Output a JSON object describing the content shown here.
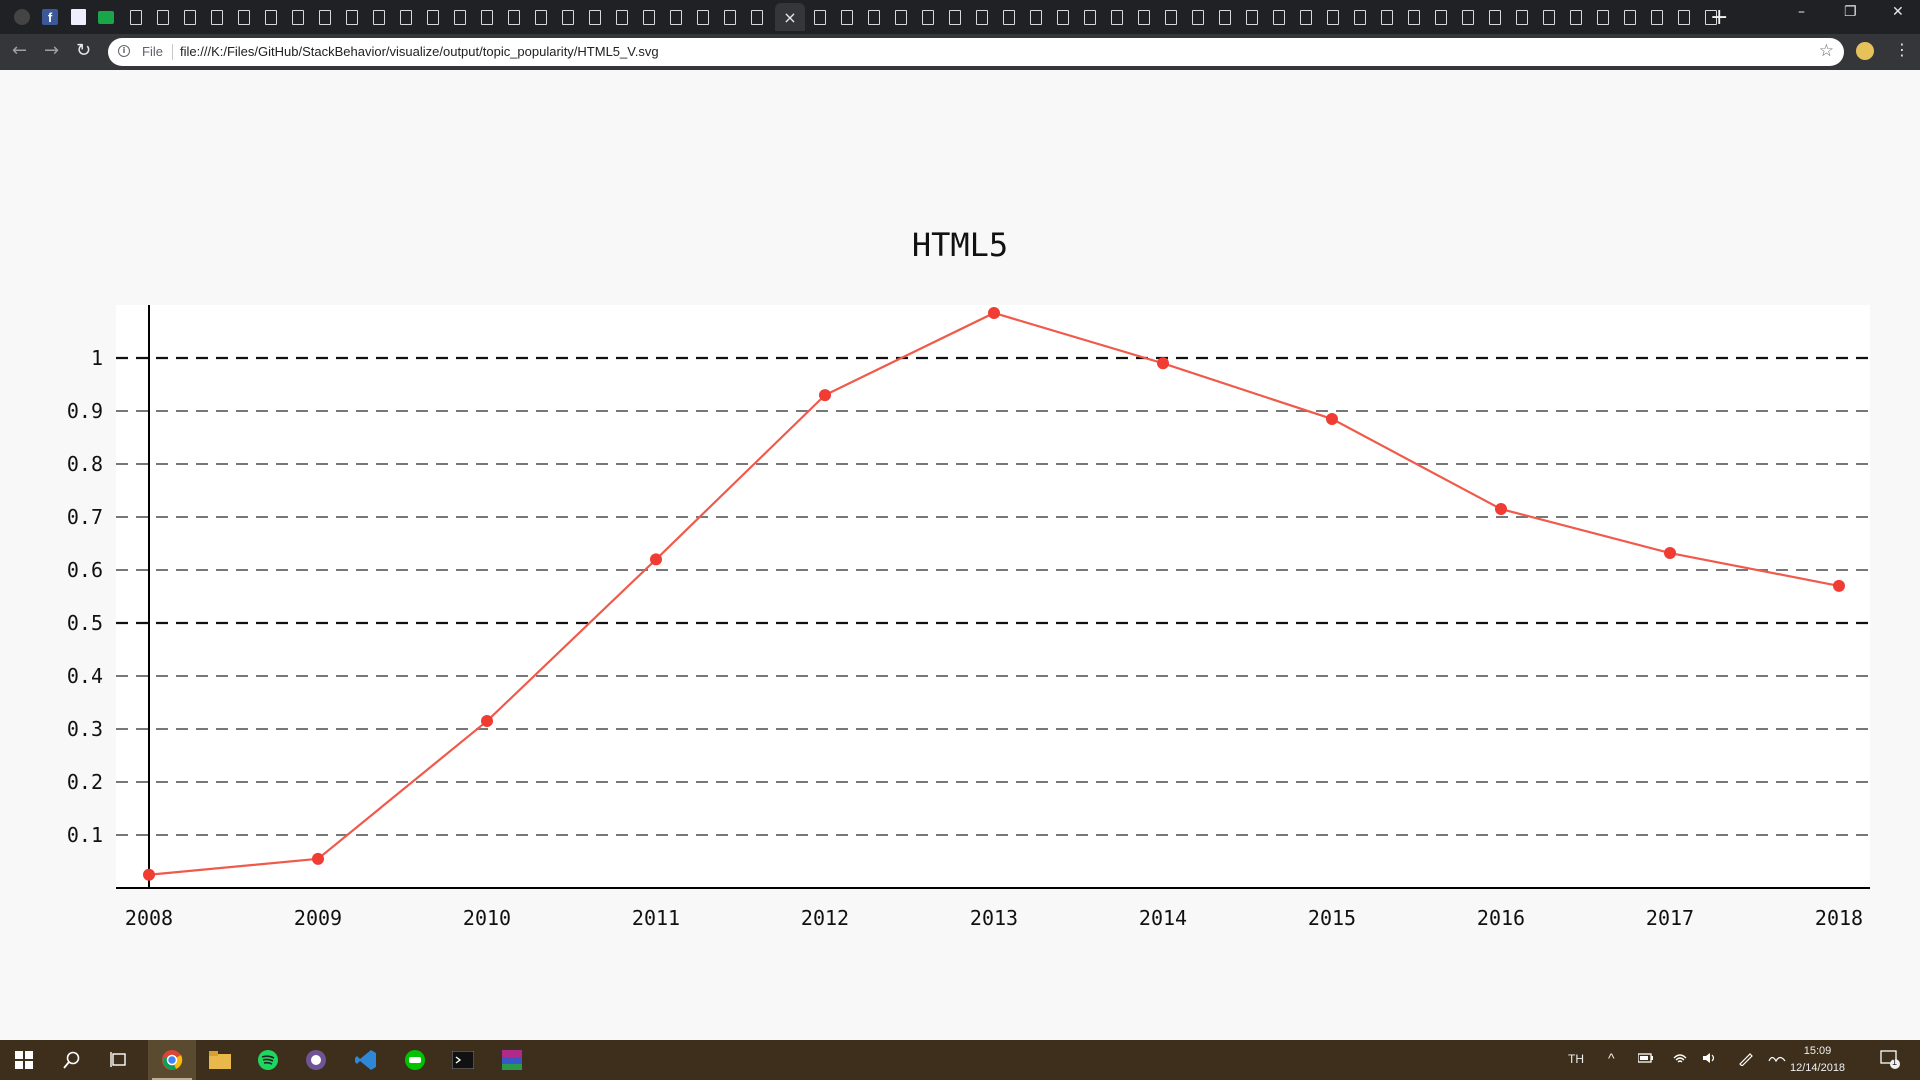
{
  "browser": {
    "active_tab_close": "×",
    "new_tab": "+",
    "window": {
      "minimize": "–",
      "restore": "❐",
      "close": "✕"
    },
    "nav": {
      "back": "←",
      "forward": "→",
      "reload": "↻"
    },
    "address": {
      "security_label": "File",
      "url": "file:///K:/Files/GitHub/StackBehavior/visualize/output/topic_popularity/HTML5_V.svg",
      "bookmark": "☆"
    },
    "menu": "⋮"
  },
  "chart_data": {
    "type": "line",
    "title": "HTML5",
    "x": [
      "2008",
      "2009",
      "2010",
      "2011",
      "2012",
      "2013",
      "2014",
      "2015",
      "2016",
      "2017",
      "2018"
    ],
    "values": [
      0.025,
      0.055,
      0.315,
      0.62,
      0.93,
      1.085,
      0.99,
      0.885,
      0.715,
      0.632,
      0.57
    ],
    "yticks": [
      "0.1",
      "0.2",
      "0.3",
      "0.4",
      "0.5",
      "0.6",
      "0.7",
      "0.8",
      "0.9",
      "1"
    ],
    "ylim": [
      0,
      1.1
    ],
    "grid": true,
    "line_color": "#f05a4b",
    "marker_color": "#f03c32"
  },
  "taskbar": {
    "language": "TH",
    "time": "15:09",
    "date": "12/14/2018",
    "notifications": "1"
  }
}
